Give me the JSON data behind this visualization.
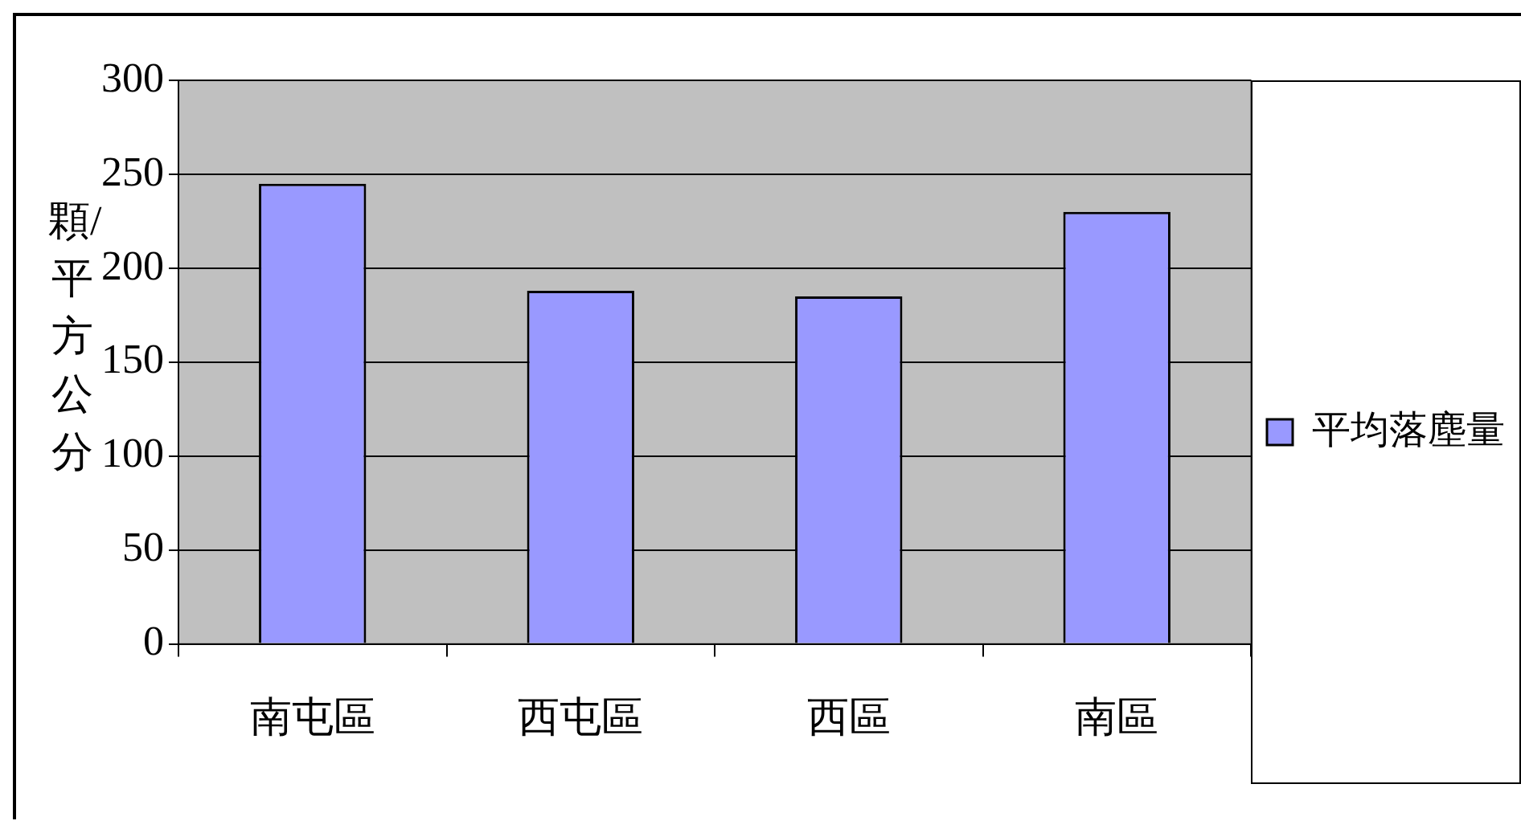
{
  "chart_data": {
    "type": "bar",
    "ylabel": "顆/平方公分",
    "categories": [
      "南屯區",
      "西屯區",
      "西區",
      "南區"
    ],
    "series": [
      {
        "name": "平均落塵量",
        "color": "#9999ff",
        "values": [
          245,
          188,
          185,
          230
        ]
      }
    ],
    "ylim": [
      0,
      300
    ],
    "yticks": [
      0,
      50,
      100,
      150,
      200,
      250,
      300
    ],
    "grid": "y",
    "legend": "right"
  }
}
